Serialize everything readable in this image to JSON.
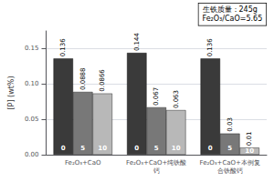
{
  "chart_data": {
    "type": "bar",
    "categories": [
      "Fe₂O₃+CaO",
      "Fe₂O₃+CaO+纯铁酸钙",
      "Fe₂O₃+CaO+本例复合铁酸钙"
    ],
    "series": [
      {
        "name": "0",
        "color": "#3a3a3a",
        "values": [
          0.136,
          0.144,
          0.136
        ]
      },
      {
        "name": "5",
        "color": "#787878",
        "values": [
          0.0888,
          0.067,
          0.03
        ]
      },
      {
        "name": "10",
        "color": "#b8b8b8",
        "values": [
          0.0866,
          0.063,
          0.01
        ]
      }
    ],
    "ylabel": "[P] (wt%)",
    "ylim": [
      0,
      0.175
    ],
    "yticks": [
      {
        "value": 0,
        "label": "0.00"
      },
      0.05,
      {
        "value": 0.1,
        "label": "0.10"
      },
      0.15
    ],
    "annotation": "生铁质量：245g\nFe₂O₃/CaO=5.65",
    "data_labels": true,
    "grid": true
  }
}
